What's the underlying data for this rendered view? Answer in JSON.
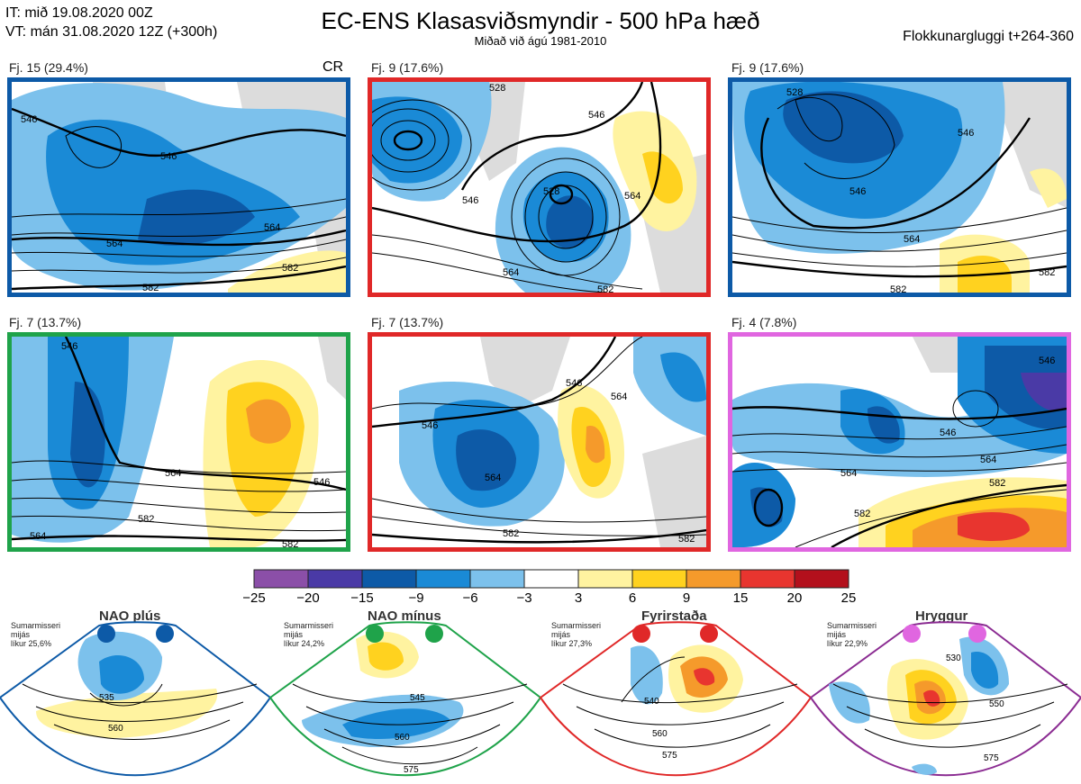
{
  "header": {
    "init_line": "IT: mið 19.08.2020 00Z",
    "valid_line": "VT: mán 31.08.2020 12Z  (+300h)",
    "title": "EC-ENS Klasasviðsmyndir - 500 hPa hæð",
    "subtitle": "Miðað við ágú 1981-2010",
    "window": "Flokkunargluggi t+264-360"
  },
  "panels": [
    {
      "label": "Fj. 15 (29.4%)",
      "tag": "CR",
      "border": "#0d5aa7",
      "contours": [
        "546",
        "564",
        "582"
      ]
    },
    {
      "label": "Fj. 9 (17.6%)",
      "tag": "",
      "border": "#e02828",
      "contours": [
        "528",
        "546",
        "564",
        "582"
      ]
    },
    {
      "label": "Fj. 9 (17.6%)",
      "tag": "",
      "border": "#0d5aa7",
      "contours": [
        "528",
        "546",
        "564",
        "582"
      ]
    },
    {
      "label": "Fj. 7 (13.7%)",
      "tag": "",
      "border": "#1fa34a",
      "contours": [
        "546",
        "564",
        "582"
      ]
    },
    {
      "label": "Fj. 7 (13.7%)",
      "tag": "",
      "border": "#e02828",
      "contours": [
        "546",
        "564",
        "582"
      ]
    },
    {
      "label": "Fj. 4 (7.8%)",
      "tag": "",
      "border": "#e066e0",
      "contours": [
        "546",
        "564",
        "582"
      ]
    }
  ],
  "colorbar": {
    "ticks": [
      "−25",
      "−20",
      "−15",
      "−9",
      "−6",
      "−3",
      "3",
      "6",
      "9",
      "15",
      "20",
      "25"
    ],
    "colors": [
      "#8b4fa8",
      "#4a3aa6",
      "#0d5aa7",
      "#1a8ad6",
      "#7cc1ec",
      "#ffffff",
      "#fff3a0",
      "#ffd21f",
      "#f59a2b",
      "#e8352f",
      "#b3101c"
    ]
  },
  "regimes": [
    {
      "name": "NAO plús",
      "season": "Sumarmisseri",
      "freq": "mijás",
      "prob": "líkur 25,6%",
      "color": "#0d5aa7",
      "contours": [
        "535",
        "560"
      ]
    },
    {
      "name": "NAO mínus",
      "season": "Sumarmisseri",
      "freq": "mijás",
      "prob": "líkur 24,2%",
      "color": "#1fa34a",
      "contours": [
        "545",
        "560",
        "575"
      ]
    },
    {
      "name": "Fyrirstaða",
      "season": "Sumarmisseri",
      "freq": "mijás",
      "prob": "líkur 27,3%",
      "color": "#e02828",
      "contours": [
        "540",
        "560",
        "575"
      ]
    },
    {
      "name": "Hryggur",
      "season": "Sumarmisseri",
      "freq": "mijás",
      "prob": "líkur 22,9%",
      "color": "#8b2c92",
      "contours": [
        "530",
        "550",
        "575"
      ]
    }
  ]
}
